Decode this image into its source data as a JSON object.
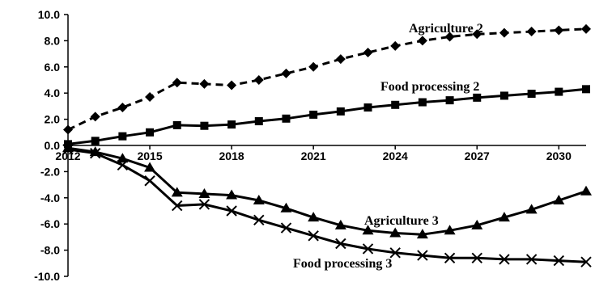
{
  "chart_data": {
    "type": "line",
    "x": [
      2012,
      2013,
      2014,
      2015,
      2016,
      2017,
      2018,
      2019,
      2020,
      2021,
      2022,
      2023,
      2024,
      2025,
      2026,
      2027,
      2028,
      2029,
      2030,
      2031
    ],
    "xticks": [
      "2012",
      "2015",
      "2018",
      "2021",
      "2024",
      "2027",
      "2030"
    ],
    "yticks": [
      "10.0",
      "8.0",
      "6.0",
      "4.0",
      "2.0",
      "0.0",
      "-2.0",
      "-4.0",
      "-6.0",
      "-8.0",
      "-10.0"
    ],
    "ylim": [
      -10,
      10
    ],
    "series": [
      {
        "name": "Agriculture 2",
        "marker": "diamond",
        "line": "dashed",
        "values": [
          1.2,
          2.2,
          2.9,
          3.7,
          4.8,
          4.7,
          4.6,
          5.0,
          5.5,
          6.0,
          6.6,
          7.1,
          7.6,
          8.0,
          8.3,
          8.5,
          8.6,
          8.7,
          8.8,
          8.9
        ]
      },
      {
        "name": "Food processing 2",
        "marker": "square",
        "line": "solid",
        "values": [
          0.1,
          0.35,
          0.7,
          1.0,
          1.55,
          1.5,
          1.6,
          1.85,
          2.05,
          2.35,
          2.6,
          2.9,
          3.1,
          3.3,
          3.45,
          3.65,
          3.8,
          3.95,
          4.1,
          4.3
        ]
      },
      {
        "name": "Agriculture 3",
        "marker": "triangle",
        "line": "solid",
        "values": [
          -0.2,
          -0.5,
          -1.0,
          -1.7,
          -3.6,
          -3.7,
          -3.8,
          -4.2,
          -4.8,
          -5.5,
          -6.1,
          -6.5,
          -6.7,
          -6.8,
          -6.5,
          -6.1,
          -5.5,
          -4.9,
          -4.2,
          -3.5
        ]
      },
      {
        "name": "Food processing 3",
        "marker": "x",
        "line": "solid",
        "values": [
          -0.3,
          -0.6,
          -1.5,
          -2.7,
          -4.6,
          -4.5,
          -5.0,
          -5.7,
          -6.3,
          -6.9,
          -7.5,
          -7.9,
          -8.2,
          -8.4,
          -8.6,
          -8.6,
          -8.7,
          -8.7,
          -8.8,
          -8.9
        ]
      }
    ]
  }
}
